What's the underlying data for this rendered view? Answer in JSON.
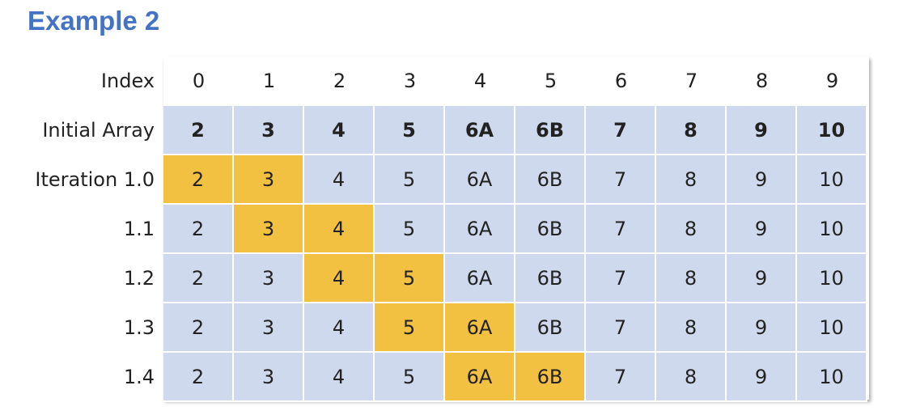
{
  "title": "Example 2",
  "header": {
    "label": "Index",
    "cells": [
      "0",
      "1",
      "2",
      "3",
      "4",
      "5",
      "6",
      "7",
      "8",
      "9"
    ]
  },
  "rows": [
    {
      "label": "Initial Array",
      "cells": [
        "2",
        "3",
        "4",
        "5",
        "6A",
        "6B",
        "7",
        "8",
        "9",
        "10"
      ],
      "highlight": [],
      "bold": true
    },
    {
      "label": "Iteration 1.0",
      "cells": [
        "2",
        "3",
        "4",
        "5",
        "6A",
        "6B",
        "7",
        "8",
        "9",
        "10"
      ],
      "highlight": [
        0,
        1
      ],
      "bold": false
    },
    {
      "label": "1.1",
      "cells": [
        "2",
        "3",
        "4",
        "5",
        "6A",
        "6B",
        "7",
        "8",
        "9",
        "10"
      ],
      "highlight": [
        1,
        2
      ],
      "bold": false
    },
    {
      "label": "1.2",
      "cells": [
        "2",
        "3",
        "4",
        "5",
        "6A",
        "6B",
        "7",
        "8",
        "9",
        "10"
      ],
      "highlight": [
        2,
        3
      ],
      "bold": false
    },
    {
      "label": "1.3",
      "cells": [
        "2",
        "3",
        "4",
        "5",
        "6A",
        "6B",
        "7",
        "8",
        "9",
        "10"
      ],
      "highlight": [
        3,
        4
      ],
      "bold": false
    },
    {
      "label": "1.4",
      "cells": [
        "2",
        "3",
        "4",
        "5",
        "6A",
        "6B",
        "7",
        "8",
        "9",
        "10"
      ],
      "highlight": [
        4,
        5
      ],
      "bold": false
    }
  ],
  "colors": {
    "title": "#4472c4",
    "cell_fill": "#cfd9ee",
    "highlight_fill": "#f2c142"
  }
}
